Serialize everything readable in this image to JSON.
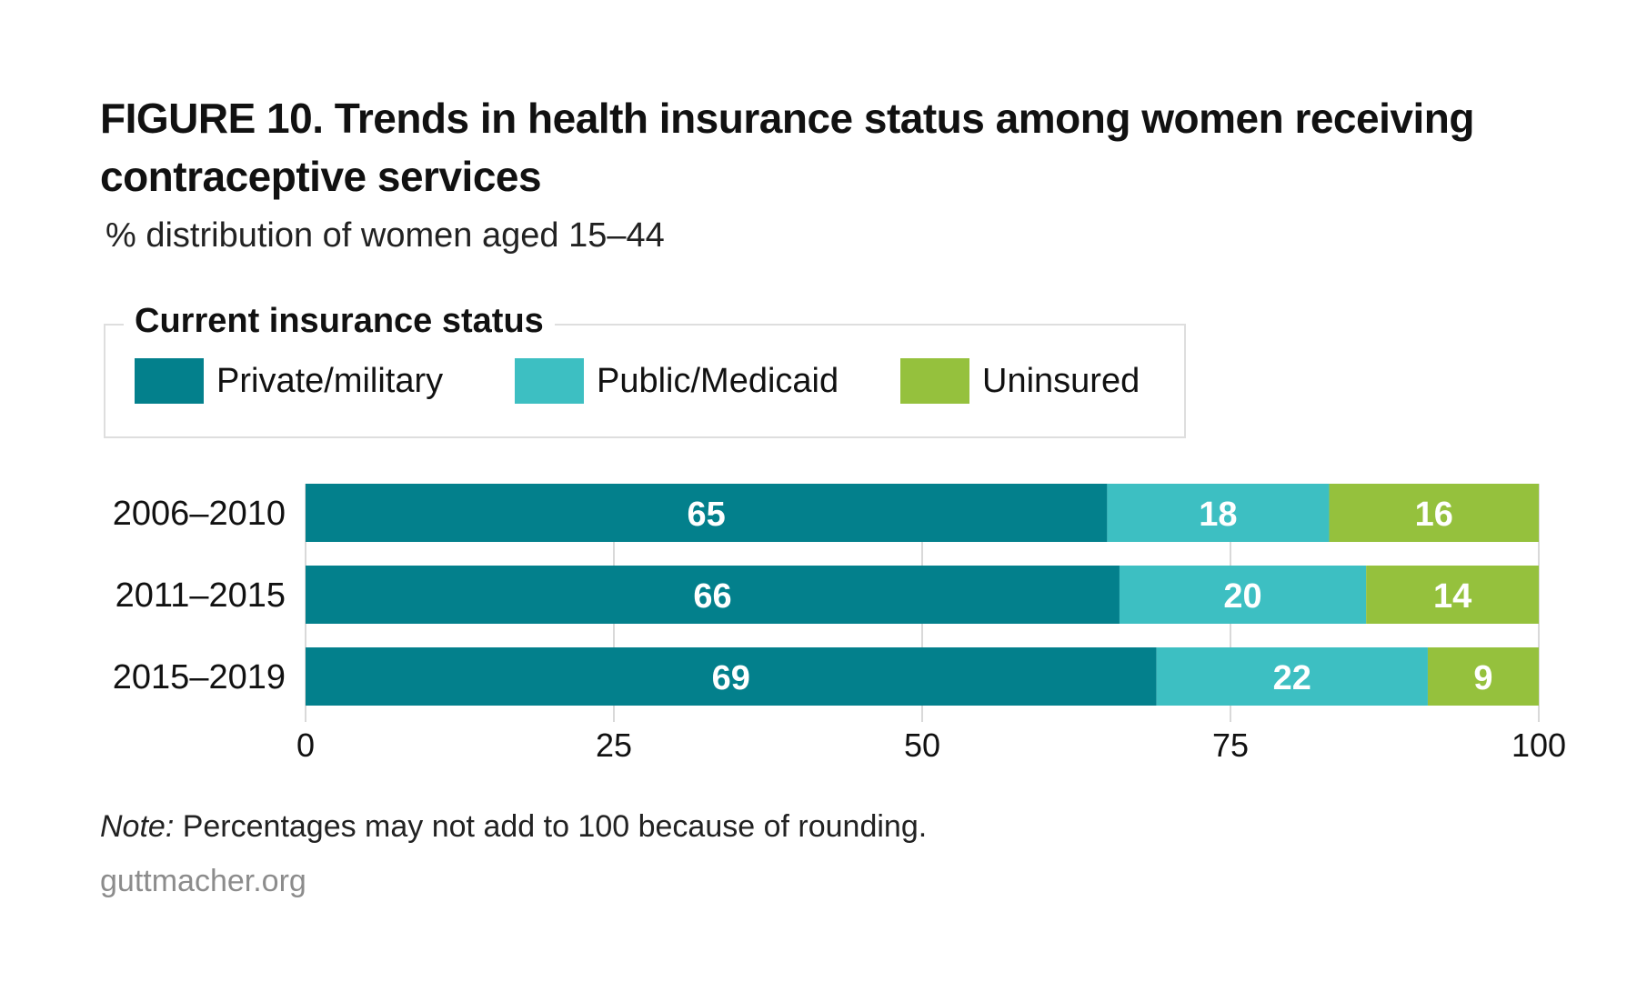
{
  "title": "FIGURE 10. Trends in health insurance status among women receiving contraceptive services",
  "subtitle": "% distribution of women aged 15–44",
  "legend": {
    "title": "Current insurance status",
    "items": [
      {
        "label": "Private/military",
        "color": "#03808C"
      },
      {
        "label": "Public/Medicaid",
        "color": "#3DBFC2"
      },
      {
        "label": "Uninsured",
        "color": "#95C13D"
      }
    ]
  },
  "chart_data": {
    "type": "bar",
    "orientation": "horizontal",
    "stacked": true,
    "categories": [
      "2006–2010",
      "2011–2015",
      "2015–2019"
    ],
    "series": [
      {
        "name": "Private/military",
        "values": [
          65,
          66,
          69
        ],
        "color": "#03808C"
      },
      {
        "name": "Public/Medicaid",
        "values": [
          18,
          20,
          22
        ],
        "color": "#3DBFC2"
      },
      {
        "name": "Uninsured",
        "values": [
          16,
          14,
          9
        ],
        "color": "#95C13D"
      }
    ],
    "xlim": [
      0,
      100
    ],
    "xticks": [
      0,
      25,
      50,
      75,
      100
    ],
    "grid": true,
    "legend_position": "top"
  },
  "note": {
    "prefix": "Note:",
    "text": " Percentages may not add to 100 because of rounding."
  },
  "source": "guttmacher.org"
}
